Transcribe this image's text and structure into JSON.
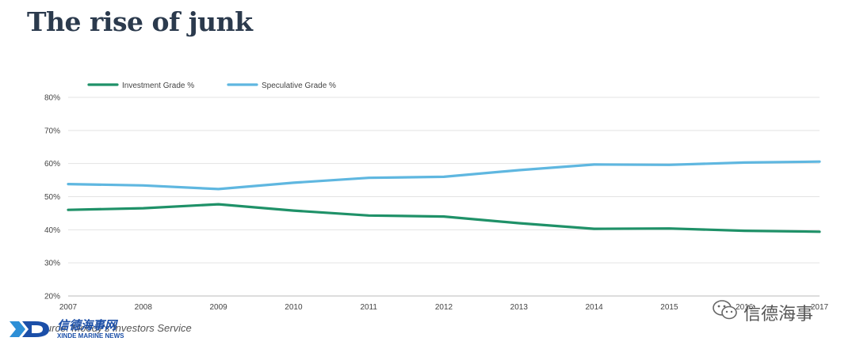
{
  "title": "The rise of junk",
  "source_text": "Source: Moody's Investors Service",
  "logo": {
    "chinese": "信德海事网",
    "english": "XINDE MARINE NEWS"
  },
  "watermark": {
    "text": "信德海事",
    "icon": "wechat-icon"
  },
  "colors": {
    "investment": "#1f9168",
    "speculative": "#5fb7e0",
    "grid": "#e3e3e3",
    "title": "#2b3a4d"
  },
  "chart_data": {
    "type": "line",
    "title": "The rise of junk",
    "x": [
      "2007",
      "2008",
      "2009",
      "2010",
      "2011",
      "2012",
      "2013",
      "2014",
      "2015",
      "2016",
      "2017"
    ],
    "series": [
      {
        "name": "Investment Grade %",
        "values": [
          46,
          46.5,
          47.7,
          45.8,
          44.3,
          44,
          42,
          40.3,
          40.4,
          39.7,
          39.4
        ]
      },
      {
        "name": "Speculative Grade %",
        "values": [
          53.8,
          53.4,
          52.3,
          54.2,
          55.7,
          56,
          58,
          59.7,
          59.6,
          60.3,
          60.6
        ]
      }
    ],
    "y_ticks": [
      "20%",
      "30%",
      "40%",
      "50%",
      "60%",
      "70%",
      "80%"
    ],
    "ylim": [
      20,
      80
    ],
    "grid": true,
    "legend_position": "top-left"
  }
}
